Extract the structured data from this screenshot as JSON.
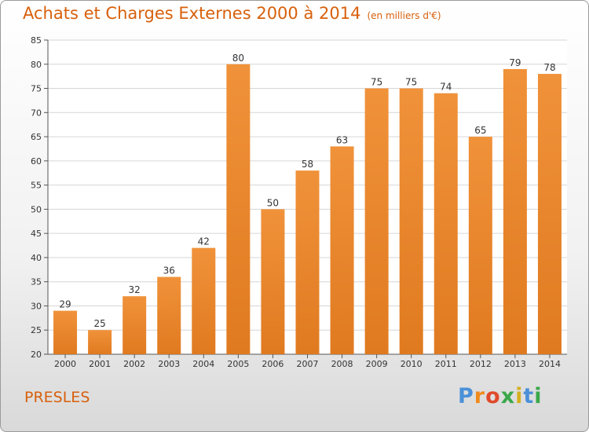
{
  "title": "Achats et Charges Externes 2000 à 2014",
  "unit": "(en milliers d'€)",
  "place": "PRESLES",
  "logo": {
    "letters": [
      "P",
      "r",
      "o",
      "x",
      "i",
      "t",
      "i"
    ],
    "colors": [
      "#4a90d9",
      "#f08a1c",
      "#e04a2a",
      "#3aa84a",
      "#d4b020",
      "#4a90d9",
      "#3aa84a"
    ]
  },
  "colors": {
    "bar": "#f0923a",
    "bar_dark": "#e07a20",
    "title": "#d8600c"
  },
  "chart_data": {
    "type": "bar",
    "title": "Achats et Charges Externes 2000 à 2014",
    "xlabel": "",
    "ylabel": "",
    "categories": [
      "2000",
      "2001",
      "2002",
      "2003",
      "2004",
      "2005",
      "2006",
      "2007",
      "2008",
      "2009",
      "2010",
      "2011",
      "2012",
      "2013",
      "2014"
    ],
    "values": [
      29,
      25,
      32,
      36,
      42,
      80,
      50,
      58,
      63,
      75,
      75,
      74,
      65,
      79,
      78
    ],
    "ylim": [
      20,
      85
    ],
    "yticks": [
      20,
      25,
      30,
      35,
      40,
      45,
      50,
      55,
      60,
      65,
      70,
      75,
      80,
      85
    ],
    "grid": true
  }
}
